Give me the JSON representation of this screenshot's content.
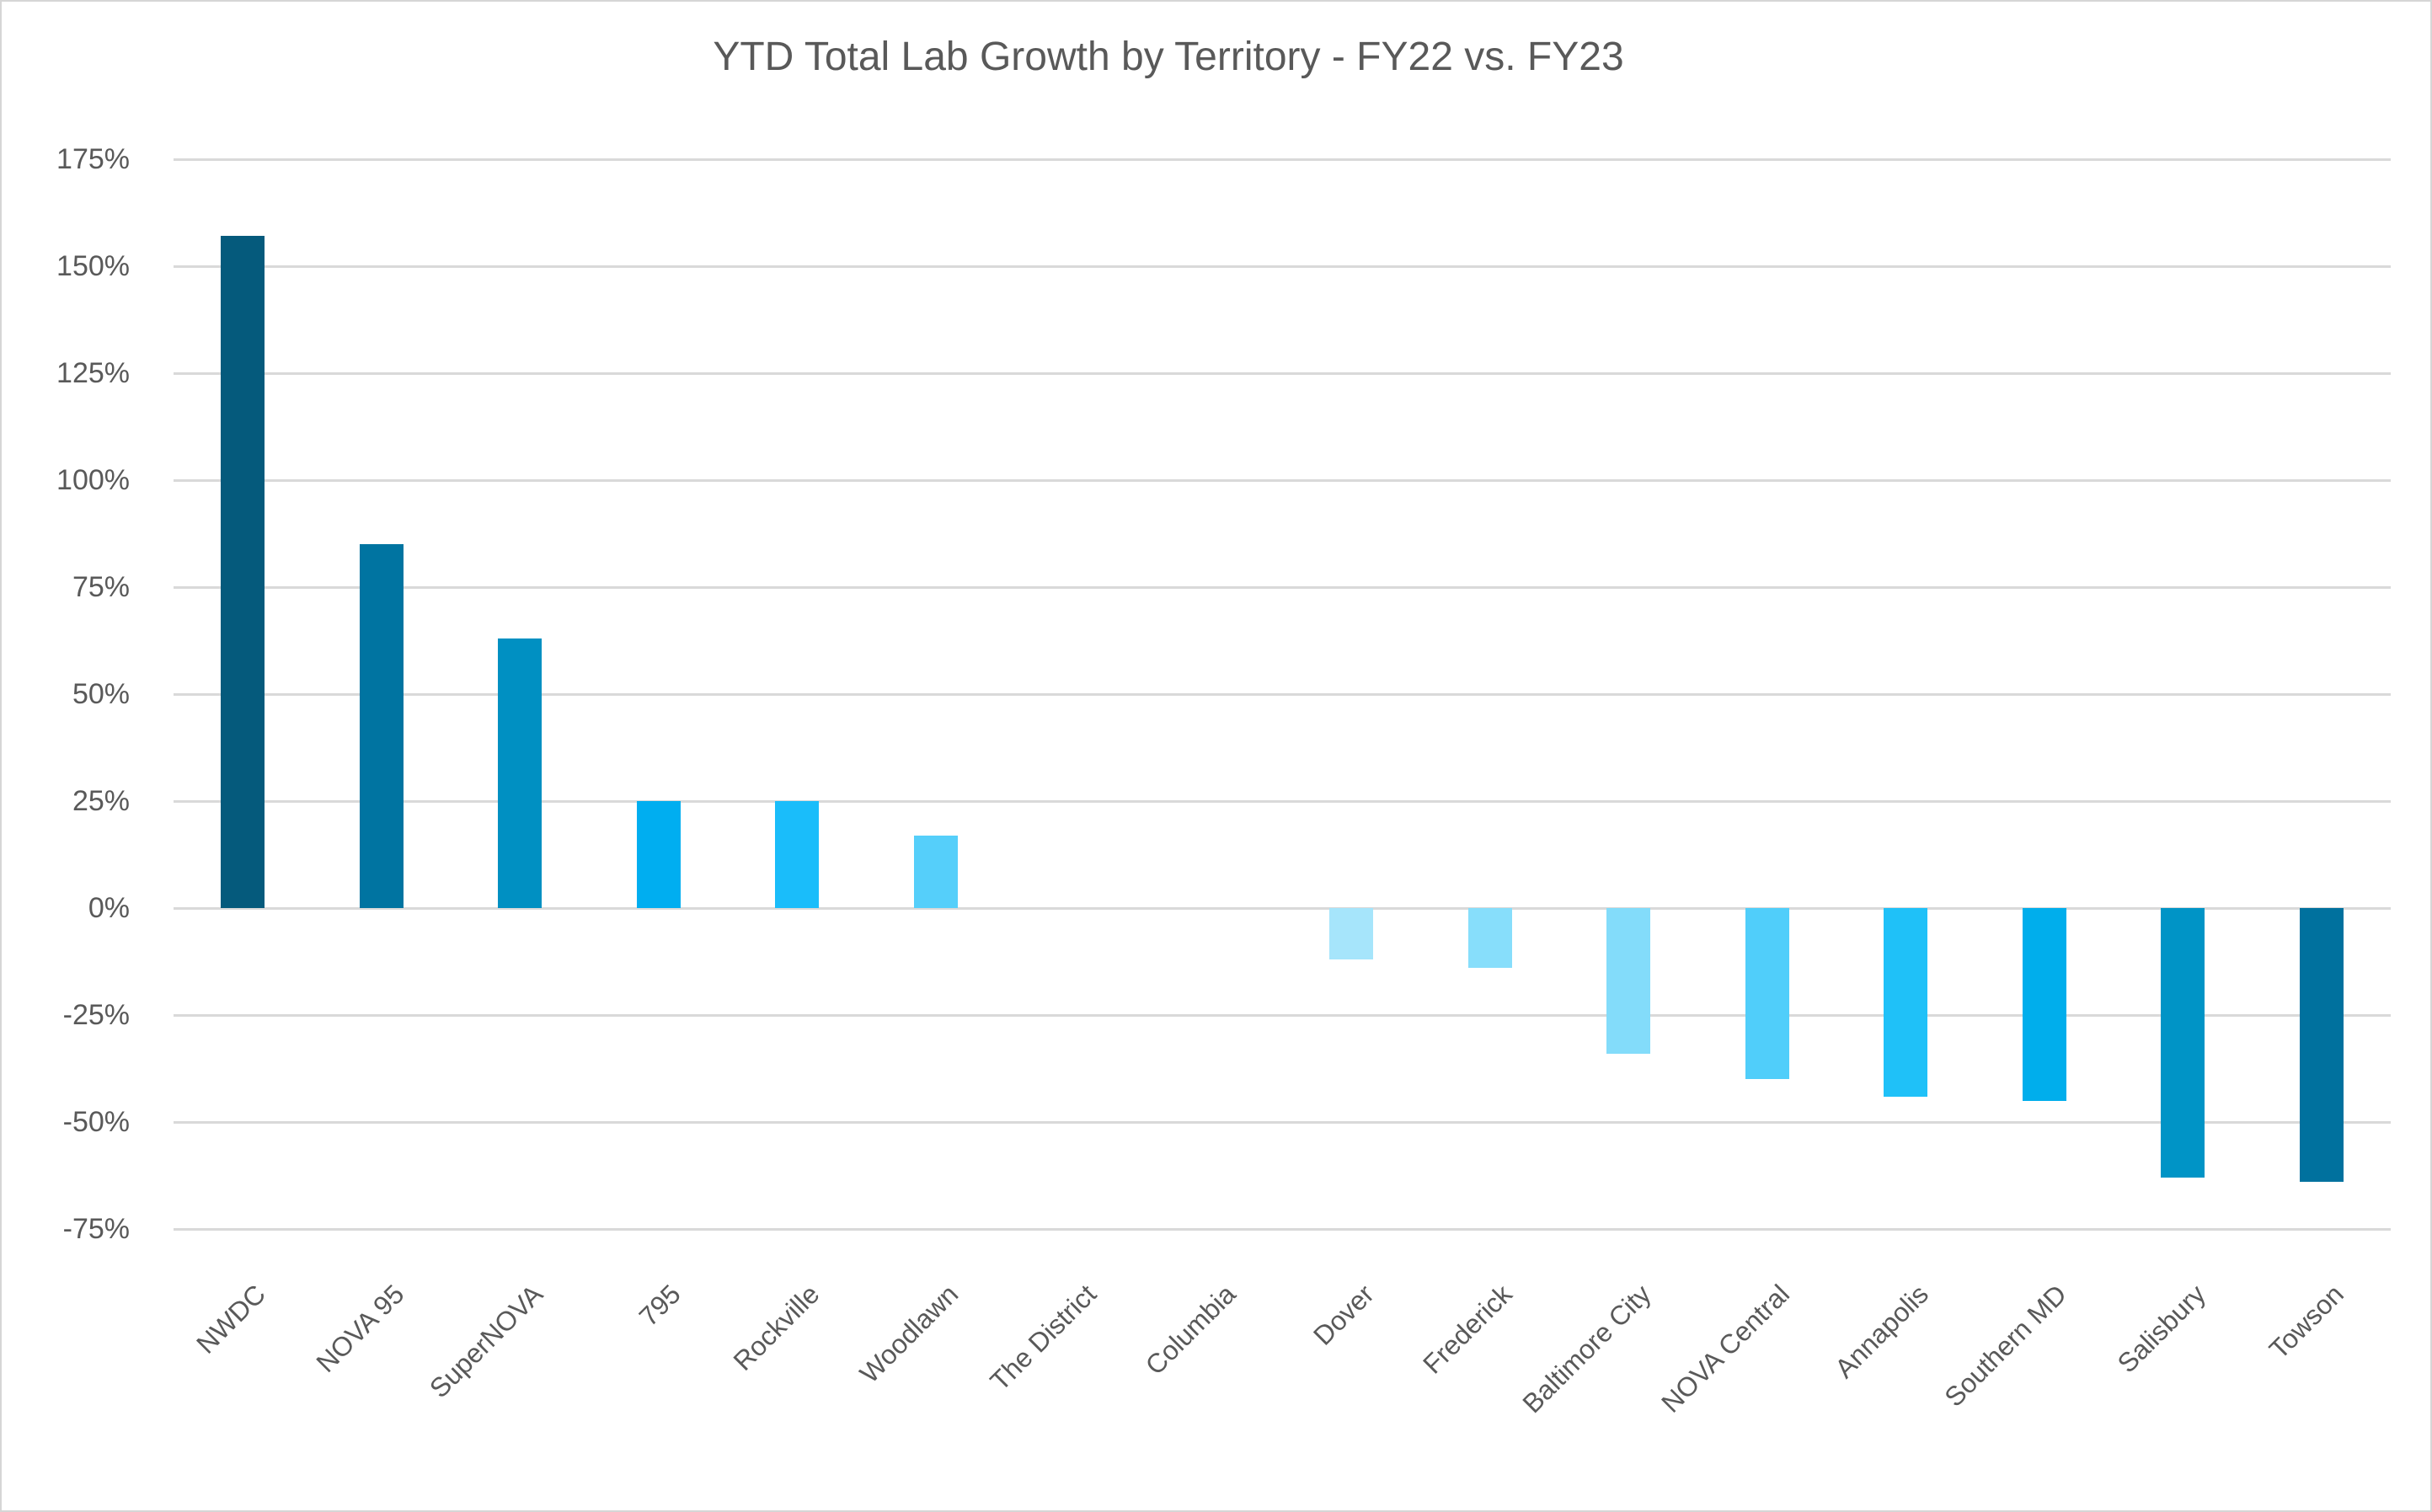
{
  "chart_data": {
    "type": "bar",
    "title": "YTD Total Lab Growth by Territory - FY22 vs. FY23",
    "categories": [
      "NWDC",
      "NOVA 95",
      "SuperNOVA",
      "795",
      "Rockville",
      "Woodlawn",
      "The District",
      "Columbia",
      "Dover",
      "Frederick",
      "Baltimore City",
      "NOVA Central",
      "Annapolis",
      "Southern MD",
      "Salisbury",
      "Towson"
    ],
    "values": [
      157,
      85,
      63,
      25,
      25,
      17,
      0,
      0,
      -12,
      -14,
      -34,
      -40,
      -44,
      -45,
      -63,
      -64
    ],
    "value_suffix": "%",
    "bar_colors": [
      "#055A7C",
      "#0074A1",
      "#0090C2",
      "#00AEF0",
      "#1ABDFA",
      "#55CFFA",
      "#55CFFA",
      "#55CFFA",
      "#A6E5FB",
      "#87DEFB",
      "#83DCFA",
      "#50CEFA",
      "#1FC1F8",
      "#00AEEC",
      "#0094C6",
      "#00719E"
    ],
    "xlabel": "",
    "ylabel": "",
    "ylim": [
      -75,
      175
    ],
    "ytick_step": 25,
    "y_axis_tick_labels": [
      "175%",
      "150%",
      "125%",
      "100%",
      "75%",
      "50%",
      "25%",
      "0%",
      "-25%",
      "-50%",
      "-75%"
    ],
    "grid": true,
    "legend": false,
    "colors": {
      "grid": "#D9D9D9",
      "axis_text": "#595959",
      "title_text": "#595959",
      "background": "#FFFFFF",
      "border": "#D6D6D6"
    }
  }
}
